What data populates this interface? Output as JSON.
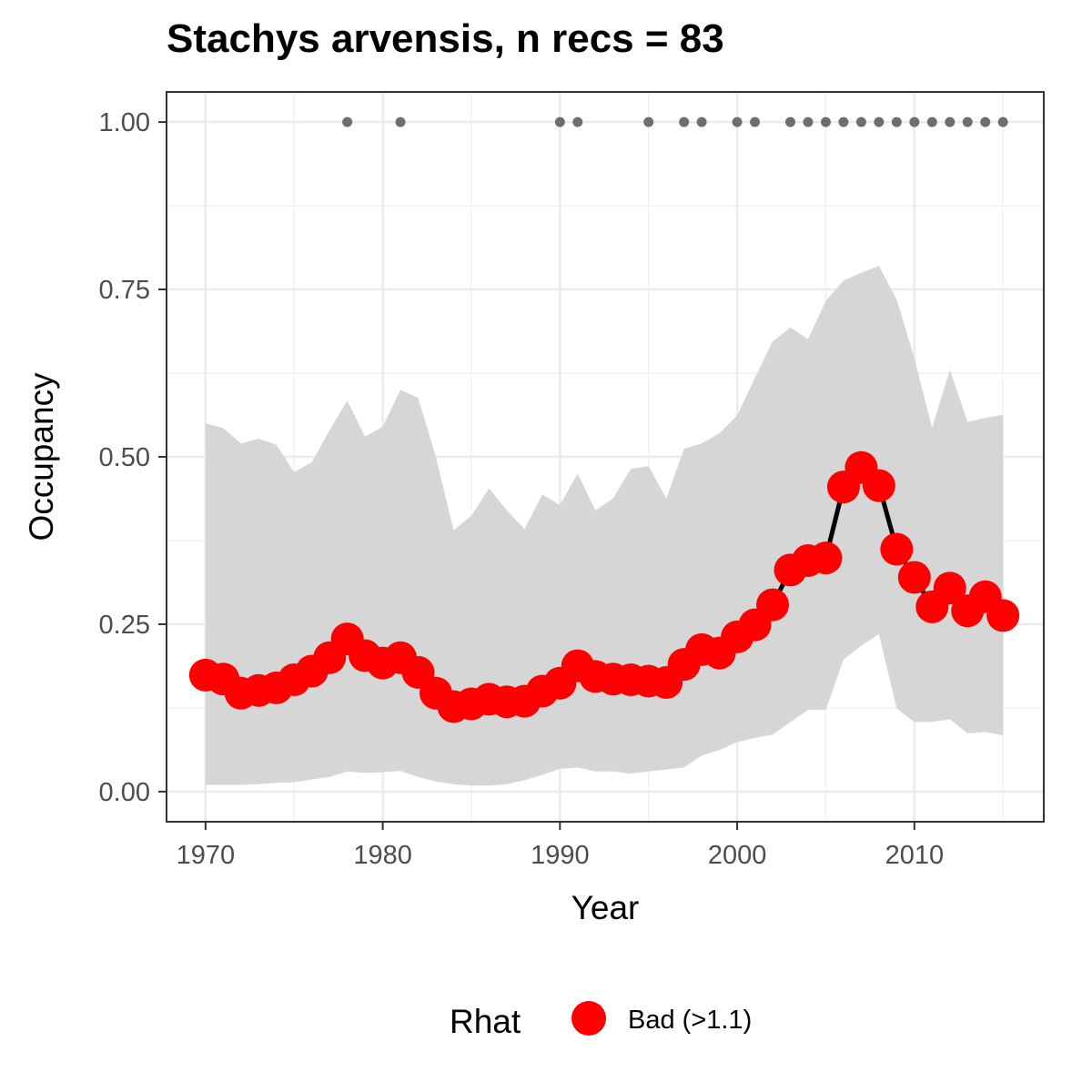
{
  "chart_data": {
    "type": "line",
    "title": "Stachys arvensis, n recs = 83",
    "xlabel": "Year",
    "ylabel": "Occupancy",
    "xlim": [
      1967.8,
      2017.3
    ],
    "ylim": [
      -0.045,
      1.045
    ],
    "x_ticks": [
      1970,
      1980,
      1990,
      2000,
      2010
    ],
    "y_ticks": [
      0.0,
      0.25,
      0.5,
      0.75,
      1.0
    ],
    "x_tick_labels": [
      "1970",
      "1980",
      "1990",
      "2000",
      "2010"
    ],
    "y_tick_labels": [
      "0.00",
      "0.25",
      "0.50",
      "0.75",
      "1.00"
    ],
    "grid": true,
    "years": [
      1970,
      1971,
      1972,
      1973,
      1974,
      1975,
      1976,
      1977,
      1978,
      1979,
      1980,
      1981,
      1982,
      1983,
      1984,
      1985,
      1986,
      1987,
      1988,
      1989,
      1990,
      1991,
      1992,
      1993,
      1994,
      1995,
      1996,
      1997,
      1998,
      1999,
      2000,
      2001,
      2002,
      2003,
      2004,
      2005,
      2006,
      2007,
      2008,
      2009,
      2010,
      2011,
      2012,
      2013,
      2014,
      2015
    ],
    "series": [
      {
        "name": "Occupancy",
        "color": "#ff0000",
        "line_color": "#000000",
        "values": [
          0.174,
          0.168,
          0.147,
          0.151,
          0.155,
          0.167,
          0.18,
          0.2,
          0.228,
          0.203,
          0.192,
          0.2,
          0.178,
          0.147,
          0.127,
          0.131,
          0.138,
          0.134,
          0.135,
          0.15,
          0.162,
          0.188,
          0.172,
          0.168,
          0.167,
          0.165,
          0.163,
          0.19,
          0.212,
          0.207,
          0.231,
          0.249,
          0.279,
          0.331,
          0.345,
          0.349,
          0.455,
          0.484,
          0.457,
          0.362,
          0.32,
          0.276,
          0.304,
          0.27,
          0.291,
          0.263
        ]
      }
    ],
    "ci_lower": [
      0.01,
      0.01,
      0.01,
      0.011,
      0.013,
      0.014,
      0.018,
      0.022,
      0.03,
      0.028,
      0.029,
      0.031,
      0.022,
      0.015,
      0.011,
      0.009,
      0.009,
      0.011,
      0.017,
      0.025,
      0.034,
      0.036,
      0.03,
      0.03,
      0.027,
      0.03,
      0.033,
      0.036,
      0.054,
      0.062,
      0.074,
      0.08,
      0.085,
      0.104,
      0.122,
      0.122,
      0.197,
      0.218,
      0.235,
      0.124,
      0.104,
      0.104,
      0.108,
      0.087,
      0.089,
      0.084
    ],
    "ci_upper": [
      0.55,
      0.543,
      0.52,
      0.527,
      0.518,
      0.477,
      0.492,
      0.54,
      0.584,
      0.53,
      0.545,
      0.6,
      0.588,
      0.5,
      0.39,
      0.412,
      0.453,
      0.42,
      0.392,
      0.444,
      0.428,
      0.475,
      0.42,
      0.438,
      0.482,
      0.486,
      0.438,
      0.512,
      0.52,
      0.535,
      0.562,
      0.618,
      0.672,
      0.693,
      0.676,
      0.733,
      0.763,
      0.775,
      0.785,
      0.735,
      0.647,
      0.543,
      0.63,
      0.552,
      0.558,
      0.563
    ],
    "record_years": [
      1978,
      1981,
      1990,
      1991,
      1995,
      1997,
      1998,
      2000,
      2001,
      2003,
      2004,
      2005,
      2006,
      2007,
      2008,
      2009,
      2010,
      2011,
      2012,
      2013,
      2014,
      2015
    ],
    "record_y": 1.0,
    "legend": {
      "title": "Rhat",
      "label": "Bad (>1.1)",
      "position": "bottom",
      "color": "#ff0000"
    },
    "ci_color": "#d6d6d6",
    "record_color": "#6e6e6e"
  }
}
